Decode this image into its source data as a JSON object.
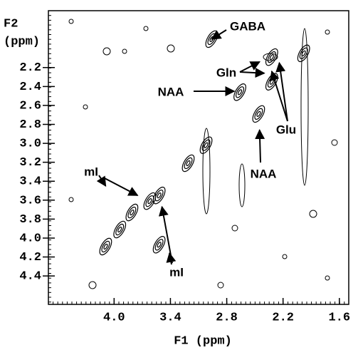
{
  "chart_data": {
    "type": "contour",
    "xlabel": "F1 (ppm)",
    "ylabel": [
      "F2",
      "(ppm)"
    ],
    "xlim": [
      4.7,
      1.5
    ],
    "ylim": [
      1.6,
      4.7
    ],
    "y_reversed": true,
    "xticks": [
      {
        "value": 4,
        "label": "4.0"
      },
      3.4,
      2.8,
      2.2,
      1.6
    ],
    "yticks": [
      2.2,
      2.4,
      2.6,
      2.8,
      {
        "value": 3,
        "label": "3.0"
      },
      3.2,
      3.4,
      3.6,
      3.8,
      {
        "value": 4,
        "label": "4.0"
      },
      4.2,
      4.4
    ],
    "color": "#000000",
    "peaks": {
      "x": [
        4.09,
        3.94,
        3.81,
        3.62,
        3.52,
        3.52,
        3.21,
        3.02,
        2.96,
        2.66,
        2.46,
        2.32,
        2.32,
        1.98
      ],
      "y": [
        4.09,
        3.91,
        3.73,
        3.61,
        3.55,
        4.07,
        3.21,
        3.02,
        1.9,
        2.46,
        2.69,
        2.35,
        2.09,
        2.05
      ]
    },
    "annotations": [
      {
        "text": "GABA",
        "targets": [
          [
            2.96,
            1.9
          ]
        ]
      },
      {
        "text": "Gln",
        "targets": [
          [
            2.45,
            2.14
          ],
          [
            2.4,
            2.26
          ]
        ]
      },
      {
        "text": "NAA",
        "targets": [
          [
            2.72,
            2.45
          ]
        ]
      },
      {
        "text": "Glu",
        "targets": [
          [
            2.32,
            2.24
          ],
          [
            2.24,
            2.15
          ]
        ]
      },
      {
        "text": "NAA",
        "targets": [
          [
            2.45,
            2.86
          ]
        ]
      },
      {
        "text": "mI",
        "targets": [
          [
            4.09,
            3.45
          ],
          [
            3.75,
            3.55
          ]
        ]
      },
      {
        "text": "mI",
        "targets": [
          [
            3.41,
            4.16
          ],
          [
            3.49,
            3.67
          ]
        ]
      }
    ]
  }
}
